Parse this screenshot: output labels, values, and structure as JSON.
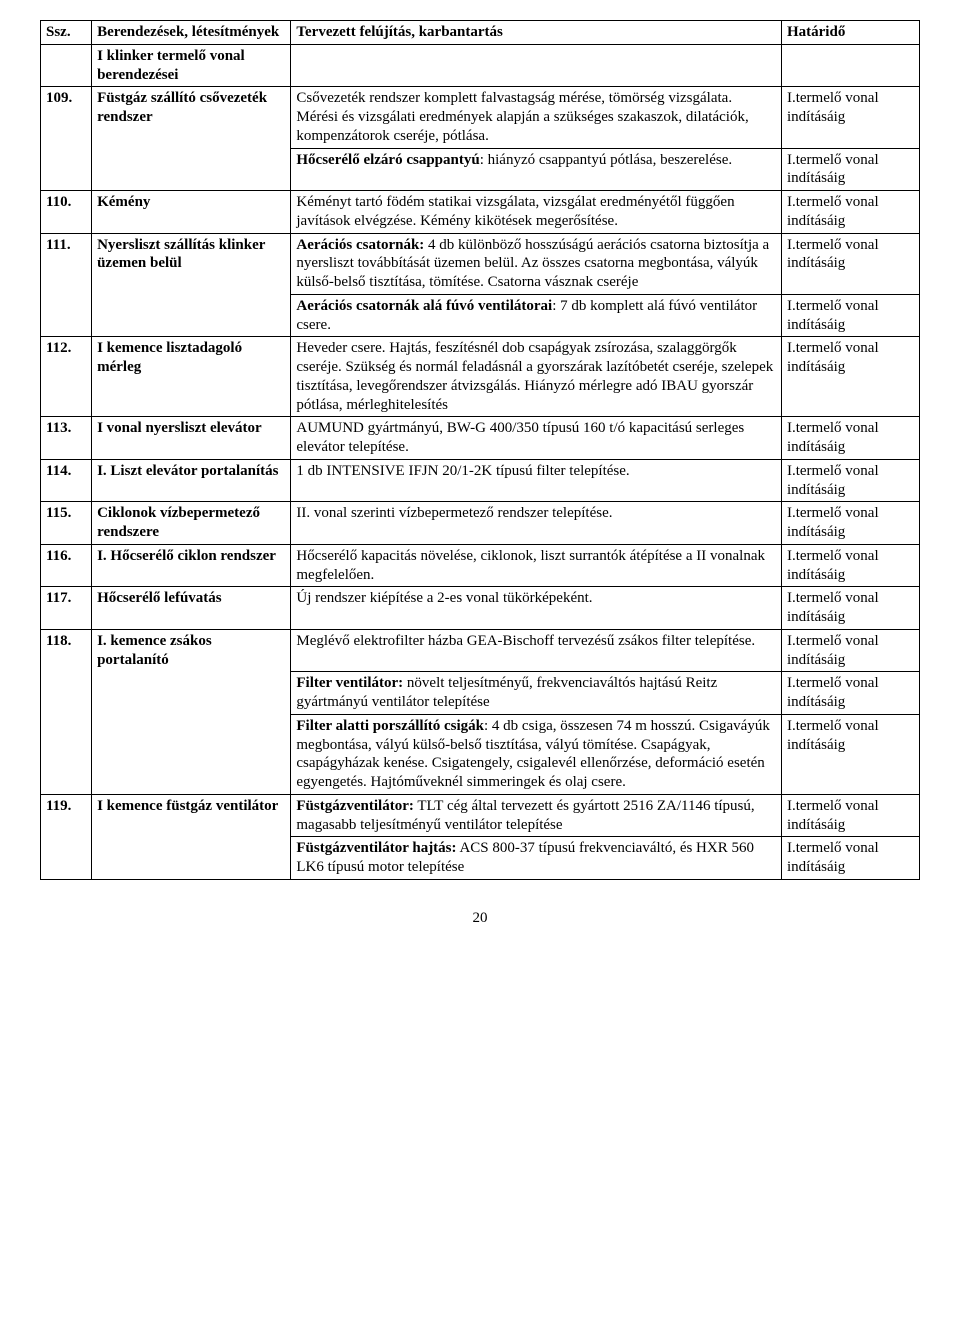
{
  "header": {
    "col1": "Ssz.",
    "col2": "Berendezések, létesítmények",
    "col3": "Tervezett felújítás, karbantartás",
    "col4": "Határidő"
  },
  "prelim": {
    "col2": "I klinker termelő vonal berendezései"
  },
  "rows": [
    {
      "num": "109.",
      "col2": "Füstgáz szállító csővezeték rendszer",
      "sub": [
        {
          "col3": "Csővezeték rendszer komplett falvastagság mérése, tömörség vizsgálata. Mérési és vizsgálati eredmények alapján a szükséges szakaszok, dilatációk, kompenzátorok cseréje, pótlása.",
          "col4": "I.termelő vonal indításáig"
        },
        {
          "col3_prefix": "Hőcserélő elzáró csappantyú",
          "col3_rest": ": hiányzó csappantyú pótlása, beszerelése.",
          "col4": "I.termelő vonal indításáig"
        }
      ]
    },
    {
      "num": "110.",
      "col2": "Kémény",
      "sub": [
        {
          "col3": "Kéményt tartó födém statikai vizsgálata, vizsgálat eredményétől függően javítások elvégzése. Kémény kikötések megerősítése.",
          "col4": "I.termelő vonal indításáig"
        }
      ]
    },
    {
      "num": "111.",
      "col2": "Nyersliszt szállítás klinker üzemen belül",
      "sub": [
        {
          "col3_prefix": "Aerációs csatornák:",
          "col3_rest": " 4 db különböző hosszúságú aerációs csatorna biztosítja a nyersliszt továbbítását üzemen belül. Az összes csatorna megbontása, vályúk külső-belső tisztítása, tömítése. Csatorna vásznak cseréje",
          "col4": "I.termelő vonal indításáig"
        },
        {
          "col3_prefix": "Aerációs csatornák alá fúvó ventilátorai",
          "col3_rest": ": 7 db komplett alá fúvó ventilátor csere.",
          "col4": "I.termelő vonal indításáig"
        }
      ]
    },
    {
      "num": "112.",
      "col2": "I kemence lisztadagoló mérleg",
      "sub": [
        {
          "col3": "Heveder csere. Hajtás, feszítésnél dob csapágyak zsírozása, szalaggörgők cseréje. Szükség és normál feladásnál a gyorszárak lazítóbetét cseréje, szelepek tisztítása, levegőrendszer átvizsgálás. Hiányzó mérlegre adó IBAU gyorszár pótlása, mérleghitelesítés",
          "col4": "I.termelő vonal indításáig"
        }
      ]
    },
    {
      "num": "113.",
      "col2": "I vonal nyersliszt elevátor",
      "sub": [
        {
          "col3": "AUMUND gyártmányú, BW-G 400/350 típusú 160 t/ó kapacitású serleges elevátor telepítése.",
          "col4": "I.termelő vonal indításáig"
        }
      ]
    },
    {
      "num": "114.",
      "col2": "I. Liszt elevátor portalanítás",
      "sub": [
        {
          "col3": "1 db  INTENSIVE  IFJN 20/1-2K típusú filter telepítése.",
          "col4": "I.termelő vonal indításáig"
        }
      ]
    },
    {
      "num": "115.",
      "col2": "Ciklonok vízbepermetező rendszere",
      "sub": [
        {
          "col3": "II. vonal szerinti vízbepermetező rendszer telepítése.",
          "col4": "I.termelő vonal indításáig"
        }
      ]
    },
    {
      "num": "116.",
      "col2": "I. Hőcserélő ciklon rendszer",
      "sub": [
        {
          "col3": "Hőcserélő kapacitás növelése, ciklonok, liszt surrantók átépítése a II vonalnak megfelelően.",
          "col4": "I.termelő vonal indításáig"
        }
      ]
    },
    {
      "num": "117.",
      "col2": "Hőcserélő lefúvatás",
      "sub": [
        {
          "col3": "Új rendszer kiépítése a 2-es vonal tükörképeként.",
          "col4": "I.termelő vonal indításáig"
        }
      ]
    },
    {
      "num": "118.",
      "col2": "I. kemence zsákos portalanító",
      "sub": [
        {
          "col3": "Meglévő elektrofilter házba GEA-Bischoff tervezésű zsákos filter telepítése.",
          "col4": "I.termelő vonal indításáig"
        },
        {
          "col3_prefix": "Filter ventilátor:",
          "col3_rest": " növelt teljesítményű, frekvenciaváltós hajtású Reitz gyártmányú ventilátor telepítése",
          "col4": "I.termelő vonal indításáig"
        },
        {
          "col3_prefix": "Filter alatti porszállító csigák",
          "col3_rest": ": 4 db csiga, összesen 74 m hosszú. Csigaváyúk megbontása, vályú külső-belső tisztítása, vályú tömítése. Csapágyak, csapágyházak kenése. Csigatengely, csigalevél ellenőrzése, deformáció esetén egyengetés. Hajtóműveknél simmeringek és olaj csere.",
          "col4": "I.termelő vonal indításáig"
        }
      ]
    },
    {
      "num": "119.",
      "col2": "I kemence füstgáz ventilátor",
      "sub": [
        {
          "col3_prefix": "Füstgázventilátor:",
          "col3_rest": " TLT cég által tervezett és gyártott 2516 ZA/1146 típusú, magasabb teljesítményű ventilátor telepítése",
          "col4": "I.termelő vonal indításáig"
        },
        {
          "col3_prefix": "Füstgázventilátor hajtás:",
          "col3_rest": " ACS 800-37 típusú frekvenciaváltó, és HXR 560 LK6 típusú motor telepítése",
          "col4": "I.termelő vonal indításáig"
        }
      ]
    }
  ],
  "page_number": "20"
}
